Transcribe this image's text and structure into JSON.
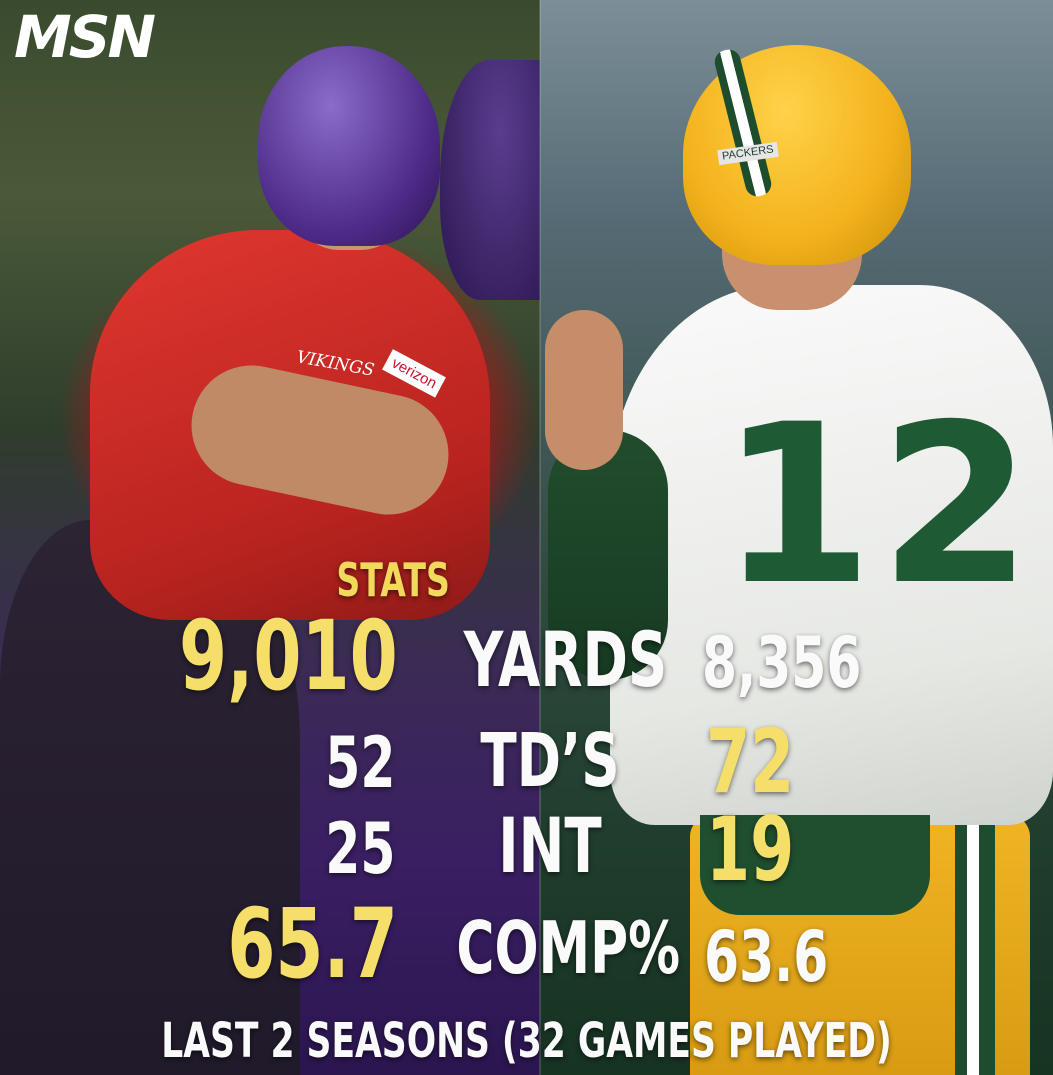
{
  "logo": {
    "text": "MSN"
  },
  "stats": {
    "heading": "STATS",
    "rows": [
      {
        "left": "9,010",
        "label": "YARDS",
        "right": "8,356",
        "highlight": "left"
      },
      {
        "left": "52",
        "label": "TD’S",
        "right": "72",
        "highlight": "right"
      },
      {
        "left": "25",
        "label": "INT",
        "right": "19",
        "highlight": "right"
      },
      {
        "left": "65.7",
        "label": "COMP%",
        "right": "63.6",
        "highlight": "left"
      }
    ],
    "footer": "LAST 2 SEASONS (32 GAMES PLAYED)"
  },
  "colors": {
    "highlight": "#f5df6a",
    "text": "#fafafa",
    "left_team_purple": "#4e2a88",
    "right_team_green": "#1e5a34",
    "right_team_gold": "#f3b21b"
  },
  "players": {
    "left": {
      "jersey_text": "VIKINGS",
      "sponsor": "verizon"
    },
    "right": {
      "jersey_number": "12",
      "helmet_text": "PACKERS"
    }
  }
}
